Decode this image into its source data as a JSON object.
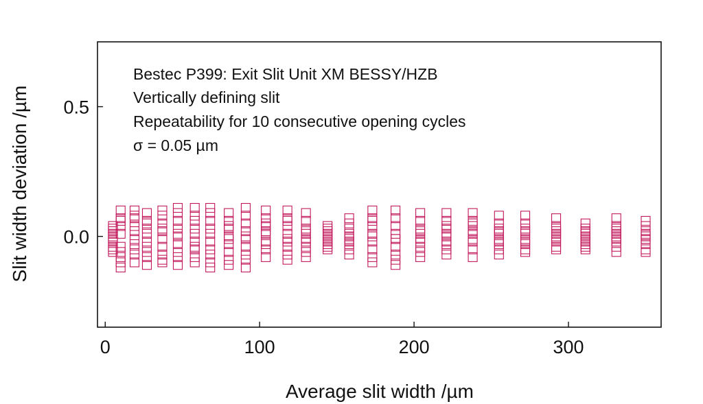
{
  "chart_data": {
    "type": "scatter",
    "annotations": [
      "Bestec P399: Exit Slit Unit XM BESSY/HZB",
      "Vertically defining slit",
      "Repeatability for 10 consecutive opening cycles",
      "σ = 0.05 µm"
    ],
    "xlabel": "Average slit width /µm",
    "ylabel": "Slit width deviation /µm",
    "xlim": [
      -5,
      360
    ],
    "ylim": [
      -0.35,
      0.75
    ],
    "xticks": [
      0,
      100,
      200,
      300
    ],
    "xtick_labels": [
      "0",
      "100",
      "200",
      "300"
    ],
    "yticks": [
      0.0,
      0.5
    ],
    "ytick_labels": [
      "0.0",
      "0.5"
    ],
    "marker": "open-square",
    "marker_color": "#c2185b",
    "grid": false,
    "legend": "none",
    "series": [
      {
        "points": [
          {
            "x": 5,
            "y": [
              0.04,
              0.02,
              0.0,
              -0.02,
              -0.04,
              -0.06,
              0.01,
              -0.01,
              0.03,
              -0.05
            ]
          },
          {
            "x": 10,
            "y": [
              0.1,
              0.07,
              0.04,
              0.01,
              -0.04,
              -0.06,
              -0.08,
              -0.1,
              -0.12,
              0.06
            ]
          },
          {
            "x": 19,
            "y": [
              0.1,
              0.07,
              0.04,
              0.02,
              -0.01,
              -0.03,
              -0.05,
              -0.07,
              -0.1,
              0.08
            ]
          },
          {
            "x": 27,
            "y": [
              0.09,
              0.06,
              0.03,
              0.01,
              -0.02,
              -0.04,
              -0.06,
              -0.08,
              -0.11,
              0.05
            ]
          },
          {
            "x": 37,
            "y": [
              0.1,
              0.08,
              0.05,
              0.02,
              -0.01,
              -0.04,
              -0.07,
              -0.09,
              -0.1,
              0.03
            ]
          },
          {
            "x": 47,
            "y": [
              0.11,
              0.09,
              0.06,
              0.03,
              0.0,
              -0.03,
              -0.06,
              -0.08,
              -0.11,
              0.01
            ]
          },
          {
            "x": 58,
            "y": [
              0.11,
              0.08,
              0.06,
              0.03,
              0.01,
              -0.02,
              -0.05,
              -0.08,
              -0.1,
              -0.04
            ]
          },
          {
            "x": 68,
            "y": [
              0.11,
              0.09,
              0.06,
              0.03,
              0.01,
              -0.02,
              -0.05,
              -0.07,
              -0.1,
              -0.12
            ]
          },
          {
            "x": 80,
            "y": [
              0.09,
              0.06,
              0.03,
              0.0,
              -0.03,
              -0.06,
              -0.09,
              -0.11,
              0.04,
              -0.01
            ]
          },
          {
            "x": 91,
            "y": [
              0.11,
              0.08,
              0.05,
              0.02,
              -0.01,
              -0.04,
              -0.07,
              -0.09,
              -0.12,
              0.0
            ]
          },
          {
            "x": 104,
            "y": [
              0.1,
              0.07,
              0.04,
              0.01,
              -0.02,
              -0.05,
              -0.08,
              0.02,
              -0.03,
              0.05
            ]
          },
          {
            "x": 118,
            "y": [
              0.1,
              0.07,
              0.04,
              0.01,
              -0.01,
              -0.04,
              -0.07,
              -0.09,
              0.06,
              -0.02
            ]
          },
          {
            "x": 130,
            "y": [
              0.09,
              0.06,
              0.03,
              0.01,
              -0.02,
              -0.04,
              -0.06,
              -0.08,
              0.02,
              -0.01
            ]
          },
          {
            "x": 144,
            "y": [
              0.04,
              0.02,
              0.0,
              -0.02,
              -0.04,
              0.01,
              -0.01,
              0.03,
              -0.03,
              -0.05
            ]
          },
          {
            "x": 158,
            "y": [
              0.07,
              0.05,
              0.03,
              0.01,
              -0.01,
              -0.03,
              -0.05,
              -0.07,
              0.0,
              -0.02
            ]
          },
          {
            "x": 173,
            "y": [
              0.1,
              0.07,
              0.04,
              0.01,
              -0.02,
              -0.05,
              -0.08,
              -0.1,
              0.0,
              0.06
            ]
          },
          {
            "x": 188,
            "y": [
              0.1,
              0.07,
              0.04,
              0.01,
              -0.01,
              -0.04,
              -0.07,
              -0.09,
              -0.11,
              -0.01
            ]
          },
          {
            "x": 204,
            "y": [
              0.09,
              0.06,
              0.03,
              0.01,
              -0.02,
              -0.04,
              -0.06,
              -0.08,
              0.02,
              -0.01
            ]
          },
          {
            "x": 221,
            "y": [
              0.09,
              0.06,
              0.03,
              0.0,
              -0.03,
              -0.05,
              -0.07,
              0.01,
              -0.02,
              0.04
            ]
          },
          {
            "x": 238,
            "y": [
              0.09,
              0.06,
              0.04,
              0.01,
              -0.02,
              -0.05,
              -0.08,
              0.02,
              -0.01,
              0.05
            ]
          },
          {
            "x": 255,
            "y": [
              0.08,
              0.05,
              0.03,
              0.01,
              -0.01,
              -0.03,
              -0.05,
              -0.07,
              0.02,
              -0.02
            ]
          },
          {
            "x": 272,
            "y": [
              0.08,
              0.05,
              0.03,
              0.01,
              -0.01,
              -0.03,
              -0.05,
              -0.06,
              0.02,
              -0.02
            ]
          },
          {
            "x": 292,
            "y": [
              0.07,
              0.04,
              0.02,
              0.0,
              -0.02,
              -0.04,
              -0.05,
              0.01,
              -0.01,
              0.03
            ]
          },
          {
            "x": 311,
            "y": [
              0.05,
              0.03,
              0.01,
              -0.01,
              -0.03,
              -0.05,
              0.0,
              -0.02,
              0.02,
              -0.04
            ]
          },
          {
            "x": 331,
            "y": [
              0.07,
              0.04,
              0.02,
              0.0,
              -0.02,
              -0.04,
              -0.06,
              0.01,
              -0.01,
              0.03
            ]
          },
          {
            "x": 350,
            "y": [
              0.06,
              0.04,
              0.02,
              0.0,
              -0.01,
              -0.03,
              -0.05,
              -0.06,
              0.01,
              -0.01
            ]
          }
        ]
      }
    ]
  }
}
